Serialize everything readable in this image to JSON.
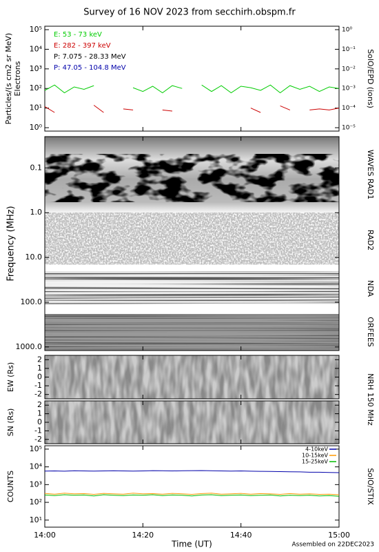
{
  "chart_data": [
    {
      "type": "line",
      "title": "Survey of 16 NOV 2023 from secchirh.obspm.fr",
      "ylabel": [
        "Particles/(s cm2 sr MeV)",
        "Electrons"
      ],
      "right_label": "SolO/EPD (ions)",
      "log_y": true,
      "x": [
        "14:00",
        "14:02",
        "14:04",
        "14:06",
        "14:08",
        "14:10",
        "14:12",
        "14:14",
        "14:16",
        "14:18",
        "14:20",
        "14:22",
        "14:24",
        "14:26",
        "14:28",
        "14:30",
        "14:32",
        "14:34",
        "14:36",
        "14:38",
        "14:40",
        "14:42",
        "14:44",
        "14:46",
        "14:48",
        "14:50",
        "14:52",
        "14:54",
        "14:56",
        "14:58",
        "15:00"
      ],
      "series": [
        {
          "name": "E: 53 - 73 keV",
          "color": "#00cc00",
          "values": [
            80,
            150,
            60,
            120,
            90,
            140,
            null,
            130,
            null,
            110,
            70,
            130,
            60,
            140,
            100,
            null,
            150,
            70,
            140,
            60,
            130,
            110,
            80,
            150,
            60,
            140,
            90,
            130,
            70,
            120,
            100
          ]
        },
        {
          "name": "E: 282 - 397 keV",
          "color": "#cc0000",
          "values": [
            12,
            6,
            null,
            null,
            null,
            14,
            6,
            null,
            9,
            8,
            null,
            null,
            8,
            7,
            null,
            null,
            null,
            null,
            null,
            null,
            null,
            10,
            6,
            null,
            13,
            8,
            null,
            8,
            9,
            8,
            10
          ]
        },
        {
          "name": "P: 7.075 - 28.33 MeV",
          "color": "#000000",
          "values": [
            null,
            null,
            null,
            null,
            null,
            null,
            null,
            null,
            null,
            null,
            null,
            null,
            null,
            null,
            null,
            null,
            null,
            null,
            null,
            null,
            null,
            null,
            null,
            null,
            null,
            null,
            null,
            null,
            null,
            null,
            null
          ]
        },
        {
          "name": "P: 47.05 - 104.8 MeV",
          "color": "#0000aa",
          "values": [
            null,
            null,
            null,
            null,
            null,
            null,
            null,
            null,
            null,
            null,
            null,
            null,
            null,
            null,
            null,
            null,
            null,
            null,
            null,
            null,
            null,
            null,
            null,
            null,
            null,
            null,
            null,
            null,
            null,
            null,
            null
          ]
        }
      ],
      "ylim": [
        0.67,
        150000
      ],
      "yticks": [
        {
          "value": 1,
          "label": "10⁰"
        },
        {
          "value": 10,
          "label": "10¹"
        },
        {
          "value": 100,
          "label": "10²"
        },
        {
          "value": 1000,
          "label": "10³"
        },
        {
          "value": 10000,
          "label": "10⁴"
        },
        {
          "value": 100000,
          "label": "10⁵"
        }
      ],
      "y2lim": [
        6.7e-06,
        1.5
      ],
      "y2ticks": [
        {
          "value": 1e-05,
          "label": "10⁻⁵"
        },
        {
          "value": 0.0001,
          "label": "10⁻⁴"
        },
        {
          "value": 0.001,
          "label": "10⁻³"
        },
        {
          "value": 0.01,
          "label": "10⁻²"
        },
        {
          "value": 0.1,
          "label": "10⁻¹"
        },
        {
          "value": 1,
          "label": "10⁰"
        }
      ]
    },
    {
      "type": "spectrogram",
      "ylabel": [
        "Frequency (MHz)"
      ],
      "log_y": true,
      "y_inverted": true,
      "band_labels": [
        "WAVES RAD1",
        "RAD2",
        "NDA",
        "ORFEES"
      ],
      "ylim": [
        0.02,
        1200
      ],
      "yticks": [
        {
          "value": 0.1,
          "label": "0.1"
        },
        {
          "value": 1,
          "label": "1.0"
        },
        {
          "value": 10,
          "label": "10.0"
        },
        {
          "value": 100,
          "label": "100.0"
        },
        {
          "value": 1000,
          "label": "1000.0"
        }
      ]
    },
    {
      "type": "image",
      "ylabel": [
        "EW (Rs)"
      ],
      "right_label": "NRH 150 MHz",
      "ylim": [
        -2.5,
        2.5
      ],
      "yticks": [
        2,
        1,
        0,
        -1,
        -2
      ]
    },
    {
      "type": "image",
      "ylabel": [
        "SN (Rs)"
      ],
      "ylim": [
        -2.5,
        2.5
      ],
      "yticks": [
        2,
        1,
        0,
        -1,
        -2
      ]
    },
    {
      "type": "line",
      "ylabel": [
        "COUNTS"
      ],
      "right_label": "SolO/STIX",
      "log_y": true,
      "legend": "upper right",
      "xlabel": "Time (UT)",
      "note": "Assembled on 22DEC2023",
      "x": [
        "14:00",
        "14:02",
        "14:04",
        "14:06",
        "14:08",
        "14:10",
        "14:12",
        "14:14",
        "14:16",
        "14:18",
        "14:20",
        "14:22",
        "14:24",
        "14:26",
        "14:28",
        "14:30",
        "14:32",
        "14:34",
        "14:36",
        "14:38",
        "14:40",
        "14:42",
        "14:44",
        "14:46",
        "14:48",
        "14:50",
        "14:52",
        "14:54",
        "14:56",
        "14:58",
        "15:00"
      ],
      "series": [
        {
          "name": "4-10keV",
          "color": "#0000aa",
          "values": [
            5800,
            5900,
            5700,
            6000,
            5900,
            5800,
            5900,
            6000,
            5900,
            5800,
            5900,
            6100,
            6000,
            5900,
            6000,
            6100,
            6200,
            6000,
            5900,
            5800,
            5900,
            5700,
            5600,
            5500,
            5400,
            5300,
            5200,
            5000,
            5000,
            4800,
            4700
          ]
        },
        {
          "name": "10-15keV",
          "color": "#ff9900",
          "values": [
            320,
            290,
            330,
            300,
            310,
            280,
            320,
            300,
            290,
            330,
            300,
            310,
            290,
            320,
            300,
            280,
            310,
            330,
            290,
            300,
            320,
            290,
            310,
            300,
            280,
            310,
            290,
            300,
            280,
            290,
            270
          ]
        },
        {
          "name": "15-25keV",
          "color": "#00bb00",
          "values": [
            260,
            240,
            270,
            250,
            260,
            230,
            270,
            250,
            240,
            260,
            250,
            270,
            240,
            260,
            250,
            230,
            260,
            270,
            240,
            250,
            260,
            240,
            250,
            260,
            230,
            250,
            240,
            250,
            230,
            240,
            220
          ]
        }
      ],
      "ylim": [
        4,
        155000
      ],
      "yticks": [
        {
          "value": 10,
          "label": "10¹"
        },
        {
          "value": 100,
          "label": "10²"
        },
        {
          "value": 1000,
          "label": "10³"
        },
        {
          "value": 10000,
          "label": "10⁴"
        },
        {
          "value": 100000,
          "label": "10⁵"
        }
      ],
      "xticks": [
        "14:00",
        "14:20",
        "14:40",
        "15:00"
      ]
    }
  ]
}
